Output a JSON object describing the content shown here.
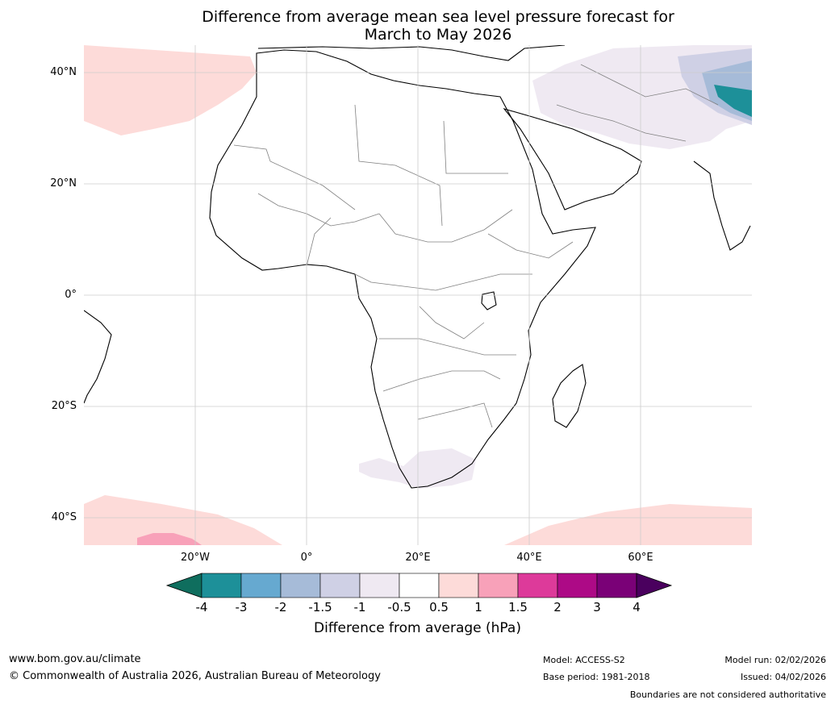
{
  "title": {
    "line1": "Difference from average mean sea level pressure forecast for",
    "line2": "March to May 2026"
  },
  "lat_labels": [
    "40°N",
    "20°N",
    "0°",
    "20°S",
    "40°S"
  ],
  "lon_labels": [
    "20°W",
    "0°",
    "20°E",
    "40°E",
    "60°E"
  ],
  "colorbar": {
    "title": "Difference from average (hPa)",
    "ticks": [
      "-4",
      "-3",
      "-2",
      "-1.5",
      "-1",
      "-0.5",
      "0.5",
      "1",
      "1.5",
      "2",
      "3",
      "4"
    ],
    "colors": [
      "#0f6e5e",
      "#1d9099",
      "#66a9d0",
      "#a6bbd8",
      "#cfd0e5",
      "#efe9f2",
      "#ffffff",
      "#fddbd9",
      "#f8a1b9",
      "#dd3a9a",
      "#ad0a86",
      "#7a0177",
      "#4a005e"
    ]
  },
  "map_colors": {
    "land_outline": "#000000",
    "border": "#808080",
    "grid": "#cccccc",
    "positive_weak": "#fddbd9",
    "positive_mid": "#f8a1b9",
    "negative_weak": "#efe9f2",
    "negative_mid": "#cfd0e5",
    "negative_strong": "#a6bbd8",
    "negative_teal": "#1d9099"
  },
  "footer": {
    "website": "www.bom.gov.au/climate",
    "copyright": "© Commonwealth of Australia 2026, Australian Bureau of Meteorology",
    "model": "Model: ACCESS-S2",
    "base_period": "Base period: 1981-2018",
    "model_run": "Model run: 02/02/2026",
    "issued": "Issued: 04/02/2026",
    "disclaimer": "Boundaries are not considered authoritative"
  }
}
